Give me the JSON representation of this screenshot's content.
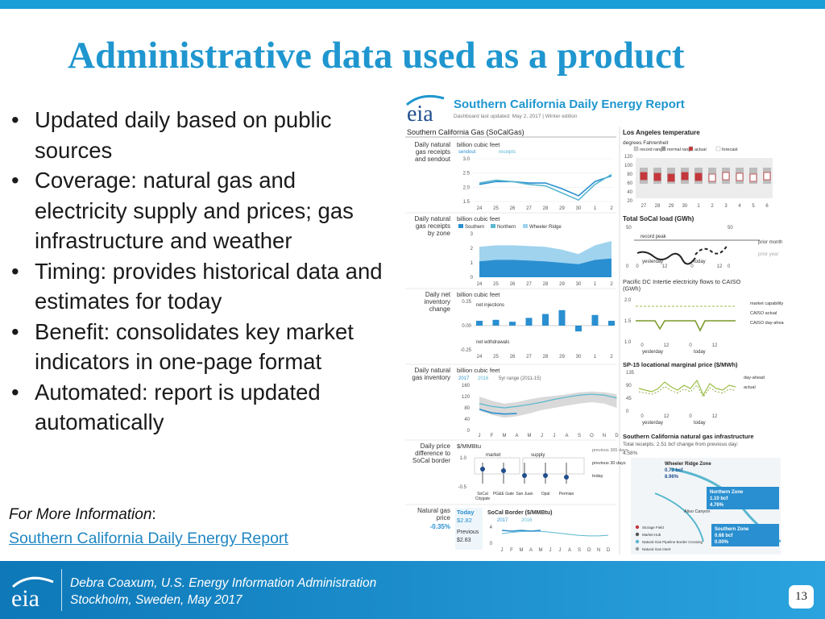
{
  "slide": {
    "title": "Administrative data used as a product",
    "bullet_char": "•",
    "bullets": [
      "Updated daily based on public sources",
      "Coverage: natural gas and electricity supply and prices; gas infrastructure and weather",
      "Timing: provides historical data and estimates for today",
      "Benefit: consolidates key market indicators in one-page format",
      "Automated: report is updated automatically"
    ],
    "more_info_label": "For More Information",
    "more_info_colon": ":",
    "more_info_link": "Southern California Daily Energy Report",
    "page_number": "13"
  },
  "footer": {
    "logo_text": "eia",
    "line1": "Debra Coaxum, U.S. Energy Information Administration",
    "line2": "Stockholm, Sweden, May 2017"
  },
  "report": {
    "logo_text": "eia",
    "title": "Southern California Daily Energy Report",
    "updated": "Dashboard last updated: May 2, 2017  |  Winter edition",
    "left_header": "Southern California Gas (SoCalGas)",
    "rows": [
      {
        "label": "Daily natural gas receipts and sendout",
        "unit": "billion cubic feet",
        "legend": [
          "sendout",
          "receipts"
        ],
        "ticks": [
          "3.0",
          "2.5",
          "2.0",
          "1.5"
        ],
        "x": [
          "24",
          "25",
          "26",
          "27",
          "28",
          "29",
          "30",
          "1",
          "2"
        ]
      },
      {
        "label": "Daily natural gas receipts by zone",
        "unit": "billion cubic feet",
        "legend": [
          "Southern",
          "Northern",
          "Wheeler Ridge"
        ],
        "ticks": [
          "3",
          "2",
          "1",
          "0"
        ],
        "x": [
          "24",
          "25",
          "26",
          "27",
          "28",
          "29",
          "30",
          "1",
          "2"
        ]
      },
      {
        "label": "Daily net inventory change",
        "unit": "billion cubic feet",
        "notes": [
          "net injections",
          "net withdrawals"
        ],
        "ticks": [
          "0.25",
          "0.00",
          "-0.25"
        ],
        "x": [
          "24",
          "25",
          "26",
          "27",
          "28",
          "29",
          "30",
          "1",
          "2"
        ]
      },
      {
        "label": "Daily natural gas inventory",
        "unit": "billion cubic feet",
        "legend": [
          "2017",
          "2016",
          "5yr range (2011-15)"
        ],
        "ticks": [
          "160",
          "120",
          "80",
          "40",
          "0"
        ],
        "x": [
          "J",
          "F",
          "M",
          "A",
          "M",
          "J",
          "J",
          "A",
          "S",
          "O",
          "N",
          "D"
        ]
      },
      {
        "label": "Daily price difference to SoCal border",
        "unit": "$/MMBtu",
        "notes": [
          "market",
          "supply"
        ],
        "ticks": [
          "1.0",
          "-0.5"
        ],
        "side": [
          "previous 365 days",
          "previous 30 days",
          "today"
        ],
        "hubs": [
          "SoCal Citygate",
          "PG&E Gate",
          "San Juan",
          "Opal",
          "Permian"
        ]
      },
      {
        "label": "Natural gas price",
        "change": "-0.35%",
        "today_label": "Today",
        "today_value": "$2.82",
        "prev_label": "Previous",
        "prev_value": "$2.83",
        "chart_title": "SoCal Border ($/MMBtu)",
        "legend": [
          "2017",
          "2016"
        ],
        "ticks": [
          "4",
          "0"
        ],
        "x": [
          "J",
          "F",
          "M",
          "A",
          "M",
          "J",
          "J",
          "A",
          "S",
          "O",
          "N",
          "D"
        ]
      }
    ],
    "right": {
      "la_title": "Los Angeles temperature",
      "la_unit": "degrees Fahrenheit",
      "la_legend": [
        "record range",
        "normal range",
        "actual",
        "forecast"
      ],
      "la_ticks": [
        "120",
        "100",
        "80",
        "60",
        "40",
        "20"
      ],
      "la_x": [
        "27",
        "28",
        "29",
        "30",
        "1",
        "2",
        "3",
        "4",
        "5",
        "6"
      ],
      "load_title": "Total SoCal load (GWh)",
      "load_ticks": [
        "50",
        "50",
        "0",
        "0"
      ],
      "load_notes": [
        "record peak",
        "prior month",
        "prior year",
        "yesterday",
        "today"
      ],
      "load_x": [
        "0",
        "12",
        "0",
        "12"
      ],
      "pdci_title": "Pacific DC Intertie electricity flows to CAISO (GWh)",
      "pdci_ticks": [
        "2.0",
        "1.5",
        "1.0"
      ],
      "pdci_legend": [
        "market capability",
        "CAISO actual",
        "CAISO day-ahead"
      ],
      "pdci_x": [
        "0",
        "12",
        "0",
        "12"
      ],
      "pdci_sub": [
        "yesterday",
        "today"
      ],
      "sp15_title": "SP-15 locational marginal price ($/MWh)",
      "sp15_ticks": [
        "135",
        "90",
        "45",
        "0"
      ],
      "sp15_legend": [
        "day-ahead",
        "actual"
      ],
      "sp15_x": [
        "0",
        "12",
        "0",
        "12"
      ],
      "sp15_sub": [
        "yesterday",
        "today"
      ],
      "infra_title": "Southern California natural gas infrastructure",
      "infra_sub": "Total receipts: 2.51 bcf  change from previous day:",
      "infra_change": "4.58%",
      "wheeler": [
        "Wheeler Ridge Zone",
        "0.73 bcf",
        "8.96%"
      ],
      "northern": [
        "Northern Zone",
        "1.10 bcf",
        "4.76%"
      ],
      "southern": [
        "Southern Zone",
        "0.68 bcf",
        "0.00%"
      ],
      "aliso": "Aliso Canyon",
      "map_legend": [
        "Storage Field",
        "Market Hub",
        "Natural Gas Pipeline Border Crossing",
        "Natural Gas Intert"
      ]
    },
    "colors": {
      "blue": "#2a8fd0",
      "lightblue": "#9fd3ee",
      "teal": "#59b7cf",
      "red": "#c4383c",
      "olive": "#7a9a2a",
      "green": "#9bbd44",
      "gray": "#c9c9c9",
      "navy": "#1f4e8c"
    }
  }
}
